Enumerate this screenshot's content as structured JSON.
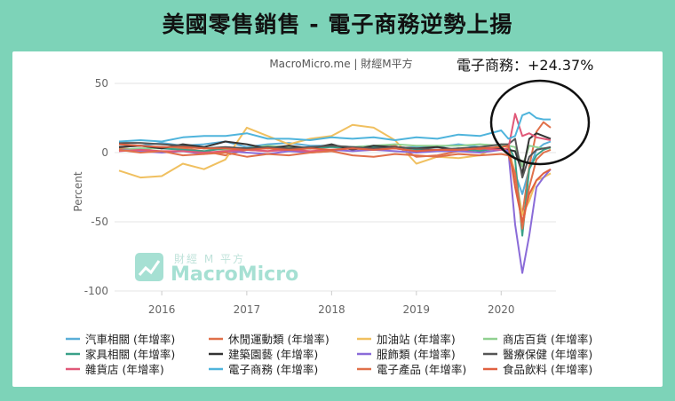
{
  "header": {
    "title": "美國零售銷售 - 電子商務逆勢上揚"
  },
  "chart_source": "MacroMicro.me | 財經M平方",
  "annotation": {
    "label": "電子商務：+24.37%"
  },
  "watermark": {
    "text": "MacroMicro",
    "sub": "財經 M 平方"
  },
  "colors": {
    "background": "#7dd3b8",
    "panel": "#ffffff"
  },
  "chart_data": {
    "type": "line",
    "title": "",
    "xlabel": "",
    "ylabel": "Percent",
    "ylim": [
      -100,
      50
    ],
    "yticks": [
      50,
      0,
      -50,
      -100
    ],
    "x": [
      "2015-07",
      "2015-10",
      "2016-01",
      "2016-04",
      "2016-07",
      "2016-10",
      "2017-01",
      "2017-04",
      "2017-07",
      "2017-10",
      "2018-01",
      "2018-04",
      "2018-07",
      "2018-10",
      "2019-01",
      "2019-04",
      "2019-07",
      "2019-10",
      "2020-01",
      "2020-02",
      "2020-03",
      "2020-04",
      "2020-05",
      "2020-06",
      "2020-07",
      "2020-08"
    ],
    "xticks": [
      "2016",
      "2017",
      "2018",
      "2019",
      "2020"
    ],
    "grid": true,
    "legend": "bottom",
    "series": [
      {
        "name": "汽車相關 (年增率)",
        "color": "#5aaed8",
        "values": [
          6,
          5,
          7,
          5,
          6,
          8,
          4,
          6,
          7,
          5,
          5,
          4,
          5,
          3,
          4,
          4,
          6,
          4,
          2,
          3,
          -15,
          -30,
          -12,
          2,
          6,
          8
        ]
      },
      {
        "name": "休閒運動類 (年增率)",
        "color": "#e0704a",
        "values": [
          3,
          2,
          4,
          3,
          1,
          -2,
          2,
          1,
          3,
          0,
          1,
          4,
          2,
          5,
          -3,
          -2,
          1,
          2,
          4,
          5,
          -18,
          -45,
          -10,
          15,
          22,
          18
        ]
      },
      {
        "name": "加油站 (年增率)",
        "color": "#f0c060",
        "values": [
          -13,
          -18,
          -17,
          -8,
          -12,
          -5,
          18,
          12,
          6,
          10,
          12,
          20,
          18,
          9,
          -8,
          -3,
          -4,
          -2,
          6,
          3,
          -15,
          -45,
          -35,
          -20,
          -18,
          -15
        ]
      },
      {
        "name": "商店百貨 (年增率)",
        "color": "#90d090",
        "values": [
          2,
          3,
          3,
          4,
          3,
          2,
          3,
          5,
          4,
          3,
          5,
          4,
          5,
          6,
          5,
          5,
          5,
          6,
          5,
          5,
          4,
          -10,
          5,
          4,
          3,
          3
        ]
      },
      {
        "name": "家具相關 (年增率)",
        "color": "#3aa088",
        "values": [
          4,
          5,
          3,
          2,
          1,
          3,
          3,
          4,
          2,
          3,
          4,
          3,
          4,
          3,
          2,
          2,
          3,
          1,
          4,
          5,
          -5,
          -60,
          -12,
          -2,
          2,
          4
        ]
      },
      {
        "name": "建築園藝 (年增率)",
        "color": "#333333",
        "values": [
          4,
          5,
          3,
          6,
          4,
          8,
          6,
          3,
          5,
          3,
          6,
          2,
          5,
          4,
          3,
          4,
          2,
          3,
          3,
          2,
          1,
          -15,
          10,
          14,
          12,
          10
        ]
      },
      {
        "name": "服飾類 (年增率)",
        "color": "#8a6bd8",
        "values": [
          2,
          1,
          0,
          1,
          -1,
          1,
          0,
          -1,
          1,
          0,
          2,
          1,
          2,
          1,
          0,
          1,
          1,
          0,
          2,
          1,
          -52,
          -87,
          -60,
          -25,
          -18,
          -12
        ]
      },
      {
        "name": "醫療保健 (年增率)",
        "color": "#555555",
        "values": [
          7,
          7,
          6,
          5,
          3,
          4,
          3,
          4,
          3,
          4,
          5,
          4,
          3,
          4,
          3,
          2,
          3,
          4,
          6,
          6,
          10,
          -18,
          -3,
          2,
          3,
          4
        ]
      },
      {
        "name": "雜貨店 (年增率)",
        "color": "#e05878",
        "values": [
          1,
          2,
          1,
          1,
          0,
          1,
          2,
          1,
          2,
          1,
          2,
          3,
          2,
          3,
          1,
          2,
          2,
          3,
          2,
          3,
          28,
          12,
          14,
          11,
          10,
          9
        ]
      },
      {
        "name": "電子商務 (年增率)",
        "color": "#4fb4dc",
        "values": [
          8,
          9,
          8,
          11,
          12,
          12,
          14,
          10,
          10,
          9,
          11,
          10,
          11,
          9,
          11,
          10,
          13,
          12,
          16,
          10,
          12,
          27,
          29,
          25,
          24,
          24
        ]
      },
      {
        "name": "電子產品 (年增率)",
        "color": "#e0704a",
        "values": [
          2,
          0,
          1,
          -2,
          -1,
          0,
          -3,
          -1,
          -2,
          0,
          1,
          -2,
          -3,
          -1,
          -2,
          -3,
          -1,
          -2,
          -1,
          -2,
          -15,
          -55,
          -25,
          -5,
          0,
          2
        ]
      },
      {
        "name": "食品飲料 (年增率)",
        "color": "#e06040",
        "values": [
          6,
          5,
          4,
          4,
          3,
          3,
          2,
          3,
          2,
          3,
          2,
          3,
          2,
          3,
          1,
          2,
          2,
          3,
          4,
          5,
          -25,
          -50,
          -30,
          -20,
          -15,
          -12
        ]
      }
    ]
  }
}
